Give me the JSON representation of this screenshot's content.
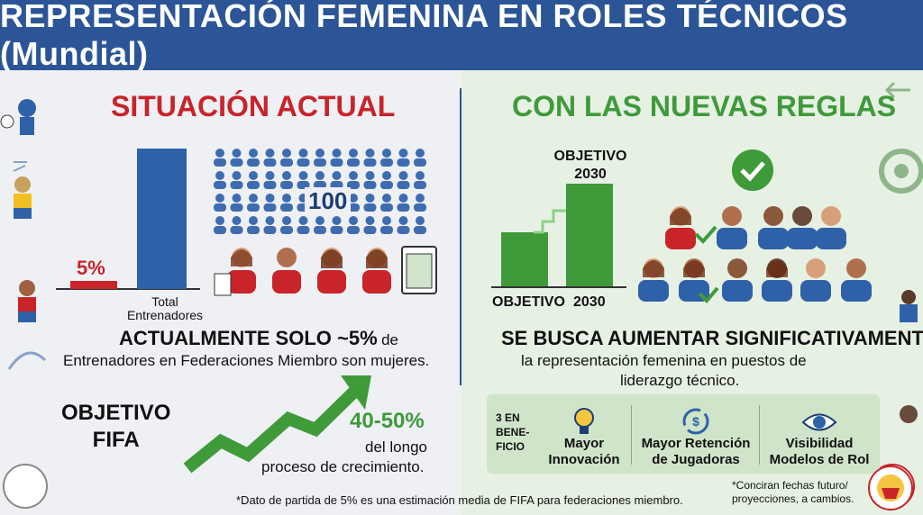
{
  "header": {
    "title": "REPRESENTACIÓN FEMENINA EN ROLES TÉCNICOS (Mundial)"
  },
  "left": {
    "title": "SITUACIÓN ACTUAL",
    "chart": {
      "pct_label": "5%",
      "total_label": "Total\nEntrenadores",
      "icon_count_label": "100"
    },
    "stat_bold": "ACTUALMENTE SOLO ~5%",
    "stat_suffix": "de",
    "stat_line2": "Entrenadores en Federaciones Miembro son mujeres.",
    "goal_title": "OBJETIVO\nFIFA",
    "goal_value": "40-50%",
    "goal_line1": "del longo",
    "goal_line2": "proceso de crecimiento."
  },
  "right": {
    "title": "CON LAS NUEVAS REGLAS",
    "chart": {
      "target_label": "OBJETIVO\n2030",
      "x_left": "OBJETIVO",
      "x_right": "2030"
    },
    "stat_bold": "SE BUSCA AUMENTAR SIGNIFICATIVAMENTE",
    "stat_line2": "la representación femenina en puestos de",
    "stat_line3": "liderazgo técnico.",
    "benefits_label": "3 EN\nBENE-\nFICIO",
    "benefits": [
      {
        "label": "Mayor\nInnovación",
        "icon": "lightbulb-icon"
      },
      {
        "label": "Mayor Retención\nde Jugadoras",
        "icon": "dollar-cycle-icon"
      },
      {
        "label": "Visibilidad\nModelos de Rol",
        "icon": "eye-icon"
      }
    ]
  },
  "footer": {
    "note": "*Dato de partida de 5% es una estimación media de FIFA para federaciones miembro.",
    "side_note": "*Conciran fechas futuro/\nproyecciones, a cambios."
  },
  "colors": {
    "header": "#2b5597",
    "red": "#c8242a",
    "green": "#3f9a3a",
    "blue": "#2f61a8"
  }
}
